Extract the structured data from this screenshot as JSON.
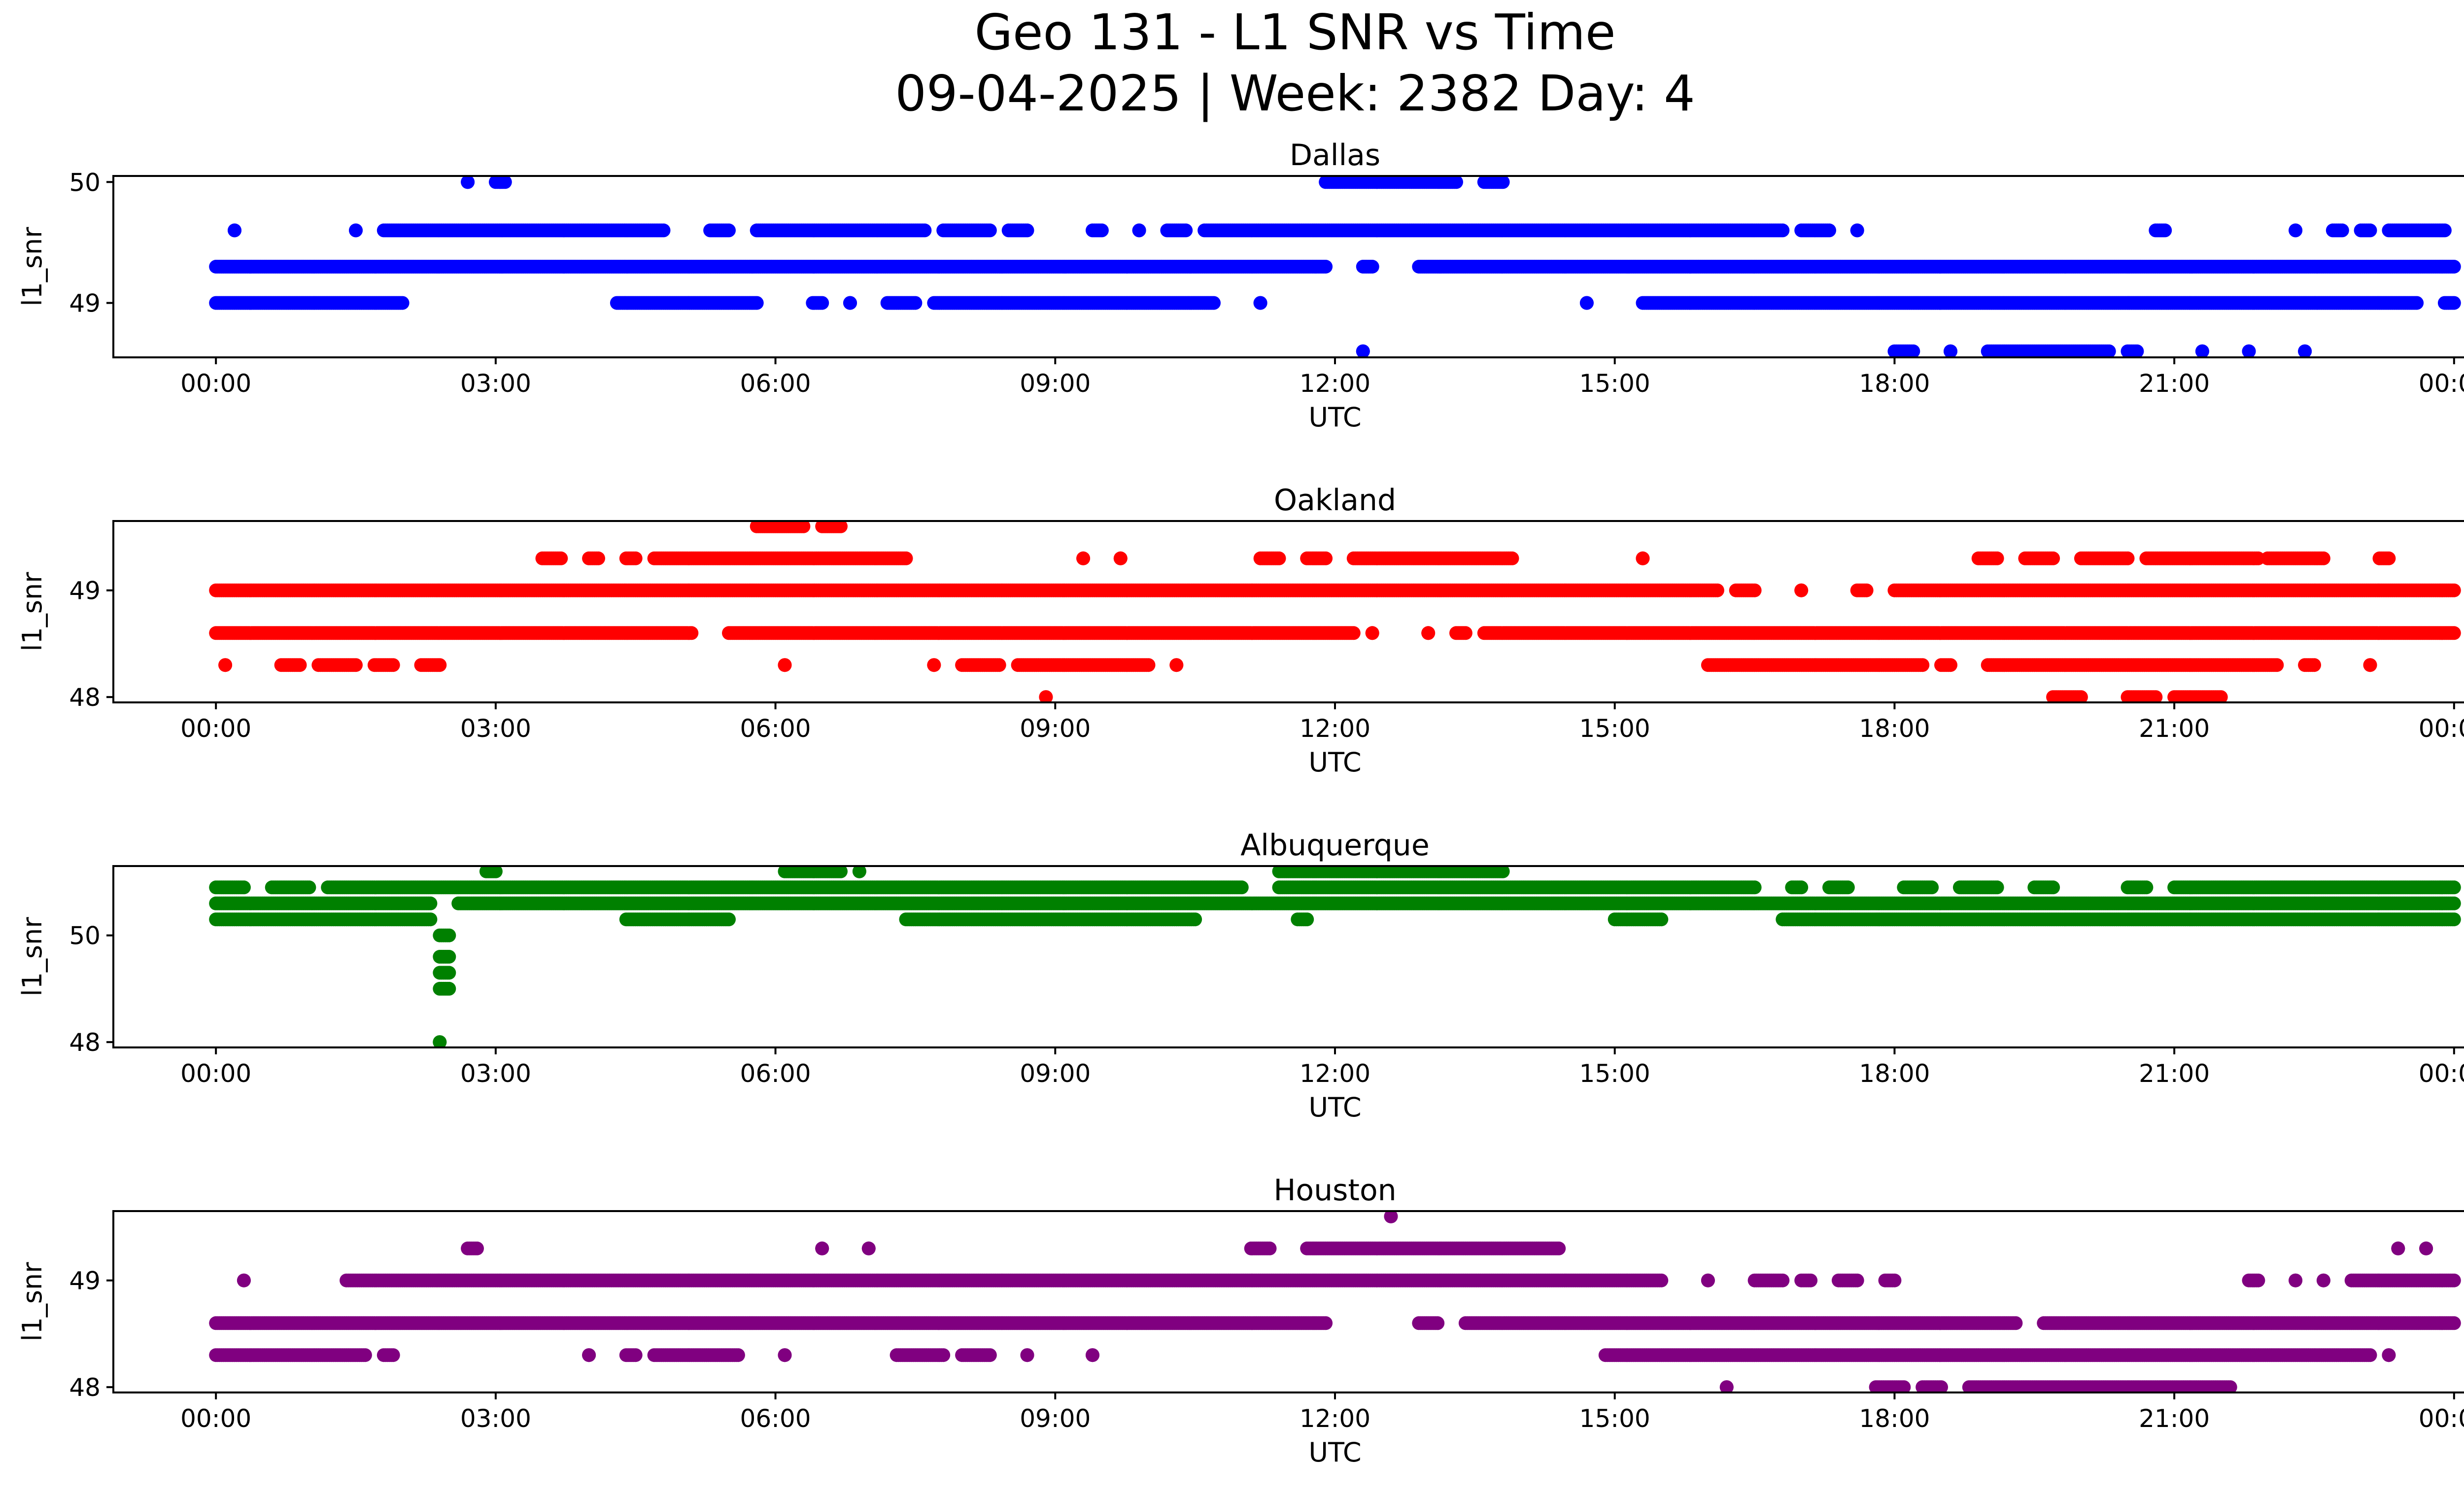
{
  "figure": {
    "title_line1": "Geo 131 - L1 SNR vs Time",
    "title_line2": "09-04-2025 | Week: 2382 Day: 4"
  },
  "chart_data": [
    {
      "type": "scatter",
      "title": "Dallas",
      "color": "#0000ff",
      "xlabel": "UTC",
      "ylabel": "l1_snr",
      "xlim": [
        -1.1,
        25.1
      ],
      "ylim": [
        48.55,
        50.05
      ],
      "yticks": [
        {
          "value": 49,
          "label": "49"
        },
        {
          "value": 50,
          "label": "50"
        }
      ],
      "xticks": [
        {
          "value": 0,
          "label": "00:00"
        },
        {
          "value": 3,
          "label": "03:00"
        },
        {
          "value": 6,
          "label": "06:00"
        },
        {
          "value": 9,
          "label": "09:00"
        },
        {
          "value": 12,
          "label": "12:00"
        },
        {
          "value": 15,
          "label": "15:00"
        },
        {
          "value": 18,
          "label": "18:00"
        },
        {
          "value": 21,
          "label": "21:00"
        },
        {
          "value": 24,
          "label": "00:00"
        }
      ],
      "series": [
        {
          "y": 49.3,
          "runs": [
            [
              0,
              11.9
            ],
            [
              12.3,
              12.4
            ],
            [
              12.9,
              24
            ]
          ]
        },
        {
          "y": 49.0,
          "runs": [
            [
              0,
              2.0
            ],
            [
              4.3,
              5.8
            ],
            [
              6.4,
              6.5
            ],
            [
              6.8,
              6.8
            ],
            [
              7.2,
              7.5
            ],
            [
              7.7,
              10.7
            ],
            [
              11.2,
              11.2
            ],
            [
              14.7,
              14.7
            ],
            [
              15.3,
              23.6
            ],
            [
              23.9,
              24
            ]
          ]
        },
        {
          "y": 49.6,
          "runs": [
            [
              0.2,
              0.2
            ],
            [
              1.5,
              1.5
            ],
            [
              1.8,
              4.8
            ],
            [
              5.3,
              5.5
            ],
            [
              5.8,
              7.6
            ],
            [
              7.8,
              8.3
            ],
            [
              8.5,
              8.7
            ],
            [
              9.4,
              9.5
            ],
            [
              9.9,
              9.9
            ],
            [
              10.2,
              10.4
            ],
            [
              10.6,
              16.8
            ],
            [
              17.0,
              17.3
            ],
            [
              17.6,
              17.6
            ],
            [
              20.8,
              20.9
            ],
            [
              22.3,
              22.3
            ],
            [
              22.7,
              22.8
            ],
            [
              23.0,
              23.1
            ],
            [
              23.3,
              23.9
            ]
          ]
        },
        {
          "y": 50.0,
          "runs": [
            [
              2.7,
              2.7
            ],
            [
              3.0,
              3.1
            ],
            [
              11.9,
              13.3
            ],
            [
              13.6,
              13.8
            ]
          ]
        },
        {
          "y": 48.6,
          "runs": [
            [
              12.3,
              12.3
            ],
            [
              18.0,
              18.2
            ],
            [
              18.6,
              18.6
            ],
            [
              19.0,
              20.3
            ],
            [
              20.5,
              20.6
            ],
            [
              21.3,
              21.3
            ],
            [
              21.8,
              21.8
            ],
            [
              22.4,
              22.4
            ]
          ]
        }
      ]
    },
    {
      "type": "scatter",
      "title": "Oakland",
      "color": "#ff0000",
      "xlabel": "UTC",
      "ylabel": "l1_snr",
      "xlim": [
        -1.1,
        25.1
      ],
      "ylim": [
        47.95,
        49.65
      ],
      "yticks": [
        {
          "value": 48,
          "label": "48"
        },
        {
          "value": 49,
          "label": "49"
        }
      ],
      "xticks": [
        {
          "value": 0,
          "label": "00:00"
        },
        {
          "value": 3,
          "label": "03:00"
        },
        {
          "value": 6,
          "label": "06:00"
        },
        {
          "value": 9,
          "label": "09:00"
        },
        {
          "value": 12,
          "label": "12:00"
        },
        {
          "value": 15,
          "label": "15:00"
        },
        {
          "value": 18,
          "label": "18:00"
        },
        {
          "value": 21,
          "label": "21:00"
        },
        {
          "value": 24,
          "label": "00:00"
        }
      ],
      "series": [
        {
          "y": 49.0,
          "runs": [
            [
              0,
              16.1
            ],
            [
              16.3,
              16.5
            ],
            [
              17.0,
              17.0
            ],
            [
              17.6,
              17.7
            ],
            [
              18.0,
              24
            ]
          ]
        },
        {
          "y": 48.6,
          "runs": [
            [
              0,
              5.1
            ],
            [
              5.5,
              12.2
            ],
            [
              12.4,
              12.4
            ],
            [
              13.0,
              13.0
            ],
            [
              13.3,
              13.4
            ],
            [
              13.6,
              24
            ]
          ]
        },
        {
          "y": 48.3,
          "runs": [
            [
              0.1,
              0.1
            ],
            [
              0.7,
              0.9
            ],
            [
              1.1,
              1.5
            ],
            [
              1.7,
              1.9
            ],
            [
              2.2,
              2.4
            ],
            [
              6.1,
              6.1
            ],
            [
              7.7,
              7.7
            ],
            [
              8.0,
              8.4
            ],
            [
              8.6,
              10.0
            ],
            [
              10.3,
              10.3
            ],
            [
              16.0,
              18.3
            ],
            [
              18.5,
              18.6
            ],
            [
              19.0,
              22.1
            ],
            [
              22.4,
              22.5
            ],
            [
              23.1,
              23.1
            ]
          ]
        },
        {
          "y": 49.3,
          "runs": [
            [
              3.5,
              3.7
            ],
            [
              4.0,
              4.1
            ],
            [
              4.4,
              4.5
            ],
            [
              4.7,
              7.4
            ],
            [
              9.3,
              9.3
            ],
            [
              9.7,
              9.7
            ],
            [
              11.2,
              11.4
            ],
            [
              11.7,
              11.9
            ],
            [
              12.2,
              13.9
            ],
            [
              15.3,
              15.3
            ],
            [
              18.9,
              19.1
            ],
            [
              19.4,
              19.7
            ],
            [
              20.0,
              20.5
            ],
            [
              20.7,
              21.9
            ],
            [
              22.0,
              22.6
            ],
            [
              23.2,
              23.3
            ]
          ]
        },
        {
          "y": 49.6,
          "runs": [
            [
              5.8,
              6.3
            ],
            [
              6.5,
              6.7
            ]
          ]
        },
        {
          "y": 48.0,
          "runs": [
            [
              8.9,
              8.9
            ],
            [
              19.7,
              20.0
            ],
            [
              20.5,
              20.8
            ],
            [
              21.0,
              21.5
            ]
          ]
        }
      ]
    },
    {
      "type": "scatter",
      "title": "Albuquerque",
      "color": "#008000",
      "xlabel": "UTC",
      "ylabel": "l1_snr",
      "xlim": [
        -1.1,
        25.1
      ],
      "ylim": [
        47.9,
        51.3
      ],
      "yticks": [
        {
          "value": 48,
          "label": "48"
        },
        {
          "value": 50,
          "label": "50"
        }
      ],
      "xticks": [
        {
          "value": 0,
          "label": "00:00"
        },
        {
          "value": 3,
          "label": "03:00"
        },
        {
          "value": 6,
          "label": "06:00"
        },
        {
          "value": 9,
          "label": "09:00"
        },
        {
          "value": 12,
          "label": "12:00"
        },
        {
          "value": 15,
          "label": "15:00"
        },
        {
          "value": 18,
          "label": "18:00"
        },
        {
          "value": 21,
          "label": "21:00"
        },
        {
          "value": 24,
          "label": "00:00"
        }
      ],
      "series": [
        {
          "y": 50.6,
          "runs": [
            [
              0,
              2.3
            ],
            [
              2.6,
              24
            ]
          ]
        },
        {
          "y": 50.3,
          "runs": [
            [
              0,
              2.3
            ],
            [
              4.4,
              5.5
            ],
            [
              7.4,
              10.5
            ],
            [
              11.6,
              11.7
            ],
            [
              15.0,
              15.5
            ],
            [
              16.8,
              24
            ]
          ]
        },
        {
          "y": 50.9,
          "runs": [
            [
              0,
              0.3
            ],
            [
              0.6,
              1.0
            ],
            [
              1.2,
              11.0
            ],
            [
              11.4,
              16.5
            ],
            [
              16.9,
              17.0
            ],
            [
              17.3,
              17.5
            ],
            [
              18.1,
              18.4
            ],
            [
              18.7,
              19.1
            ],
            [
              19.5,
              19.7
            ],
            [
              20.5,
              20.7
            ],
            [
              21.0,
              24
            ]
          ]
        },
        {
          "y": 51.2,
          "runs": [
            [
              2.9,
              3.0
            ],
            [
              6.1,
              6.7
            ],
            [
              6.9,
              6.9
            ],
            [
              11.4,
              13.8
            ]
          ]
        },
        {
          "y": 50.0,
          "runs": [
            [
              2.4,
              2.5
            ]
          ]
        },
        {
          "y": 49.6,
          "runs": [
            [
              2.4,
              2.5
            ]
          ]
        },
        {
          "y": 49.3,
          "runs": [
            [
              2.4,
              2.5
            ]
          ]
        },
        {
          "y": 49.0,
          "runs": [
            [
              2.4,
              2.5
            ]
          ]
        },
        {
          "y": 48.0,
          "runs": [
            [
              2.4,
              2.4
            ]
          ]
        }
      ]
    },
    {
      "type": "scatter",
      "title": "Houston",
      "color": "#800080",
      "xlabel": "UTC",
      "ylabel": "l1_snr",
      "xlim": [
        -1.1,
        25.1
      ],
      "ylim": [
        47.95,
        49.65
      ],
      "yticks": [
        {
          "value": 48,
          "label": "48"
        },
        {
          "value": 49,
          "label": "49"
        }
      ],
      "xticks": [
        {
          "value": 0,
          "label": "00:00"
        },
        {
          "value": 3,
          "label": "03:00"
        },
        {
          "value": 6,
          "label": "06:00"
        },
        {
          "value": 9,
          "label": "09:00"
        },
        {
          "value": 12,
          "label": "12:00"
        },
        {
          "value": 15,
          "label": "15:00"
        },
        {
          "value": 18,
          "label": "18:00"
        },
        {
          "value": 21,
          "label": "21:00"
        },
        {
          "value": 24,
          "label": "00:00"
        }
      ],
      "series": [
        {
          "y": 48.6,
          "runs": [
            [
              0,
              11.9
            ],
            [
              12.9,
              13.1
            ],
            [
              13.4,
              19.3
            ],
            [
              19.6,
              24
            ]
          ]
        },
        {
          "y": 48.3,
          "runs": [
            [
              0,
              1.6
            ],
            [
              1.8,
              1.9
            ],
            [
              4.0,
              4.0
            ],
            [
              4.4,
              4.5
            ],
            [
              4.7,
              5.6
            ],
            [
              6.1,
              6.1
            ],
            [
              7.3,
              7.8
            ],
            [
              8.0,
              8.3
            ],
            [
              8.7,
              8.7
            ],
            [
              9.4,
              9.4
            ],
            [
              14.9,
              23.1
            ],
            [
              23.3,
              23.3
            ]
          ]
        },
        {
          "y": 49.0,
          "runs": [
            [
              0.3,
              0.3
            ],
            [
              1.4,
              15.5
            ],
            [
              16.0,
              16.0
            ],
            [
              16.5,
              16.8
            ],
            [
              17.0,
              17.1
            ],
            [
              17.4,
              17.6
            ],
            [
              17.9,
              18.0
            ],
            [
              21.8,
              21.9
            ],
            [
              22.3,
              22.3
            ],
            [
              22.6,
              22.6
            ],
            [
              22.9,
              24
            ]
          ]
        },
        {
          "y": 49.3,
          "runs": [
            [
              2.7,
              2.8
            ],
            [
              6.5,
              6.5
            ],
            [
              7.0,
              7.0
            ],
            [
              11.1,
              11.3
            ],
            [
              11.7,
              14.4
            ],
            [
              23.4,
              23.4
            ],
            [
              23.7,
              23.7
            ]
          ]
        },
        {
          "y": 49.6,
          "runs": [
            [
              12.6,
              12.6
            ]
          ]
        },
        {
          "y": 48.0,
          "runs": [
            [
              16.2,
              16.2
            ],
            [
              17.8,
              18.1
            ],
            [
              18.3,
              18.5
            ],
            [
              18.8,
              21.6
            ]
          ]
        }
      ]
    }
  ]
}
